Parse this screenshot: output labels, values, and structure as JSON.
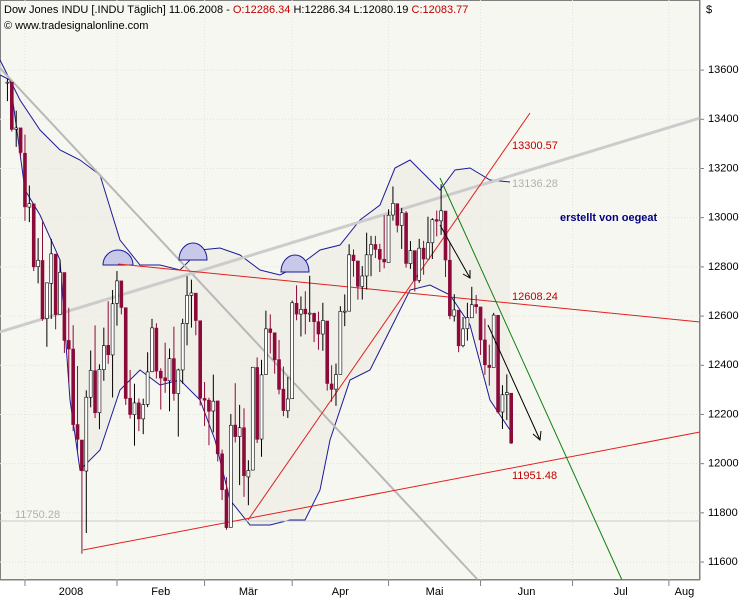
{
  "chart_data": {
    "type": "candlestick",
    "title": "Dow Jones INDU [.INDU Täglich] 11.06.2008 -",
    "ohlc_labels": [
      "O:12286.34",
      "H:12286.34 L:12080.19",
      "C:12083.77"
    ],
    "source": "© www.tradesignalonline.com",
    "y_unit": "$",
    "annotations": [
      "13300.57",
      "13136.28",
      "12608.24",
      "11951.48",
      "11750.28",
      "erstellt von oegeat"
    ],
    "up_color": "#ffffff",
    "down_color": "#8b0a3a",
    "xlim": [
      -1.7,
      158.1
    ],
    "xticks": [
      {
        "value": 4,
        "label": "2008"
      },
      {
        "value": 25,
        "label": "Feb"
      },
      {
        "value": 45,
        "label": "Mär"
      },
      {
        "value": 65,
        "label": "Apr"
      },
      {
        "value": 87,
        "label": "Mai"
      },
      {
        "value": 108,
        "label": "Jun"
      },
      {
        "value": 129,
        "label": "Jul"
      },
      {
        "value": 151,
        "label": "Aug"
      }
    ],
    "ylim": [
      11527,
      13885
    ],
    "yticks": [
      11600,
      11800,
      12000,
      12200,
      12400,
      12600,
      12800,
      13000,
      13200,
      13400,
      13600
    ],
    "grid": true,
    "open": [
      13550,
      13550,
      13359,
      13365,
      13262,
      13043,
      13056,
      12801,
      12826,
      12590,
      12733,
      12852,
      12607,
      12777,
      12501,
      12466,
      12159,
      12096,
      11970,
      12270,
      12378,
      12207,
      12382,
      12481,
      12442,
      12652,
      12743,
      12634,
      12266,
      12199,
      12247,
      12182,
      12241,
      12374,
      12551,
      12376,
      12349,
      12337,
      12427,
      12285,
      12381,
      12570,
      12684,
      12693,
      12581,
      12265,
      12258,
      12214,
      12255,
      12040,
      11894,
      11741,
      12157,
      12110,
      12146,
      11946,
      11974,
      12391,
      12100,
      12363,
      12548,
      12532,
      12423,
      12303,
      12215,
      12264,
      12652,
      12608,
      12628,
      12608,
      12611,
      12577,
      12527,
      12580,
      12324,
      12303,
      12363,
      12619,
      12620,
      12848,
      12824,
      12720,
      12763,
      12849,
      12891,
      12871,
      12831,
      12818,
      13011,
      13057,
      12968,
      13019,
      12813,
      12866,
      12745,
      12876,
      12832,
      12898,
      12992,
      12987,
      13027,
      12827,
      12600,
      12624,
      12480,
      12549,
      12593,
      12647,
      12637,
      12503,
      12400,
      12391,
      12603,
      12210,
      12281,
      12286.34
    ],
    "high": [
      13565,
      13552,
      13435,
      13365,
      13338,
      13131,
      13056,
      12917,
      12984,
      12736,
      12914,
      12852,
      12830,
      12777,
      12634,
      12563,
      12397,
      12096,
      12298,
      12460,
      12562,
      12404,
      12553,
      12660,
      12706,
      12783,
      12743,
      12634,
      12381,
      12325,
      12265,
      12264,
      12453,
      12589,
      12571,
      12388,
      12492,
      12468,
      12557,
      12386,
      12589,
      12762,
      12748,
      12694,
      12581,
      12332,
      12268,
      12362,
      12255,
      12057,
      11945,
      12202,
      12327,
      12239,
      12225,
      12014,
      12393,
      12432,
      12422,
      12622,
      12607,
      12532,
      12503,
      12395,
      12353,
      12663,
      12725,
      12680,
      12701,
      12764,
      12614,
      12618,
      12654,
      12580,
      12400,
      12407,
      12640,
      12688,
      12892,
      12871,
      12824,
      12803,
      12939,
      12926,
      12926,
      12894,
      13010,
      13034,
      13127,
      13057,
      13040,
      13027,
      12905,
      12866,
      12914,
      12906,
      13004,
      12998,
      13029,
      13136,
      13027,
      12900,
      12689,
      12624,
      12596,
      12654,
      12719,
      12686,
      12637,
      12590,
      12484,
      12613,
      12603,
      12319,
      12363,
      12286.34
    ],
    "low": [
      13474,
      13350,
      13288,
      13248,
      12987,
      12982,
      12783,
      12733,
      12581,
      12475,
      12588,
      12546,
      12607,
      12450,
      12330,
      12132,
      12050,
      11634,
      11718,
      12229,
      12185,
      12140,
      12337,
      12406,
      12269,
      12561,
      12607,
      12239,
      12183,
      12073,
      12132,
      12120,
      12230,
      12372,
      12346,
      12220,
      12288,
      12213,
      12256,
      12110,
      12325,
      12481,
      12553,
      12522,
      12236,
      12153,
      12075,
      12127,
      12009,
      11852,
      11731,
      11742,
      12086,
      11913,
      11865,
      11831,
      11973,
      12084,
      12028,
      12362,
      12448,
      12366,
      12282,
      12193,
      12186,
      12264,
      12583,
      12517,
      12526,
      12576,
      12494,
      12463,
      12459,
      12297,
      12252,
      12235,
      12363,
      12559,
      12620,
      12760,
      12667,
      12667,
      12708,
      12762,
      12836,
      12779,
      12794,
      12818,
      12988,
      12940,
      12873,
      12797,
      12792,
      12700,
      12735,
      12768,
      12832,
      12832,
      12924,
      12930,
      12759,
      12587,
      12578,
      12453,
      12473,
      12500,
      12593,
      12610,
      12442,
      12361,
      12317,
      12391,
      12204,
      12141,
      12177,
      12080.19
    ],
    "close": [
      13551,
      13359,
      13365,
      13265,
      13044,
      13057,
      12800,
      12827,
      12589,
      12735,
      12853,
      12606,
      12778,
      12501,
      12466,
      12159,
      12099,
      11971,
      12270,
      12379,
      12207,
      12383,
      12480,
      12443,
      12650,
      12743,
      12635,
      12265,
      12200,
      12247,
      12182,
      12240,
      12373,
      12552,
      12376,
      12348,
      12337,
      12427,
      12285,
      12381,
      12570,
      12684,
      12694,
      12582,
      12266,
      12258,
      12213,
      12254,
      12040,
      11894,
      11740,
      12156,
      12110,
      12146,
      11951,
      11972,
      12392,
      12099,
      12361,
      12548,
      12533,
      12422,
      12302,
      12216,
      12263,
      12654,
      12608,
      12627,
      12609,
      12612,
      12577,
      12527,
      12582,
      12326,
      12302,
      12362,
      12619,
      12620,
      12849,
      12825,
      12721,
      12763,
      12849,
      12891,
      12871,
      12831,
      12820,
      13010,
      13058,
      12969,
      13020,
      12814,
      12866,
      12745,
      12876,
      12832,
      12898,
      12992,
      12986,
      13028,
      12828,
      12601,
      12625,
      12479,
      12548,
      12594,
      12646,
      12638,
      12503,
      12402,
      12391,
      12604,
      12210,
      12280,
      12289,
      12083.77
    ]
  }
}
